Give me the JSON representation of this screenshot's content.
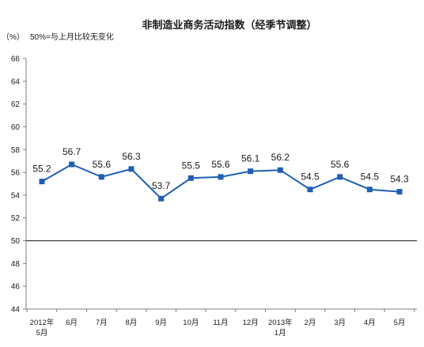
{
  "chart_data": {
    "type": "line",
    "title": "非制造业商务活动指数（经季节调整）",
    "unit_label": "（%）",
    "note": "50%=与上月比较无变化",
    "xlabel": "",
    "ylabel": "",
    "ylim": [
      44,
      66
    ],
    "yticks": [
      44,
      46,
      48,
      50,
      52,
      54,
      56,
      58,
      60,
      62,
      64,
      66
    ],
    "reference_line": 50,
    "grid": false,
    "categories": [
      [
        "2012年",
        "5月"
      ],
      [
        "6月"
      ],
      [
        "7月"
      ],
      [
        "8月"
      ],
      [
        "9月"
      ],
      [
        "10月"
      ],
      [
        "11月"
      ],
      [
        "12月"
      ],
      [
        "2013年",
        "1月"
      ],
      [
        "2月"
      ],
      [
        "3月"
      ],
      [
        "4月"
      ],
      [
        "5月"
      ]
    ],
    "series": [
      {
        "values": [
          55.2,
          56.7,
          55.6,
          56.3,
          53.7,
          55.5,
          55.6,
          56.1,
          56.2,
          54.5,
          55.6,
          54.5,
          54.3
        ],
        "labels": [
          "55.2",
          "56.7",
          "55.6",
          "56.3",
          "53.7",
          "55.5",
          "55.6",
          "56.1",
          "56.2",
          "54.5",
          "55.6",
          "54.5",
          "54.3"
        ],
        "color": "#1f5fb4",
        "marker": "square"
      }
    ],
    "colors": {
      "axis": "#7f7f7f",
      "reference": "#333333",
      "line": "#1f5fb4"
    }
  }
}
